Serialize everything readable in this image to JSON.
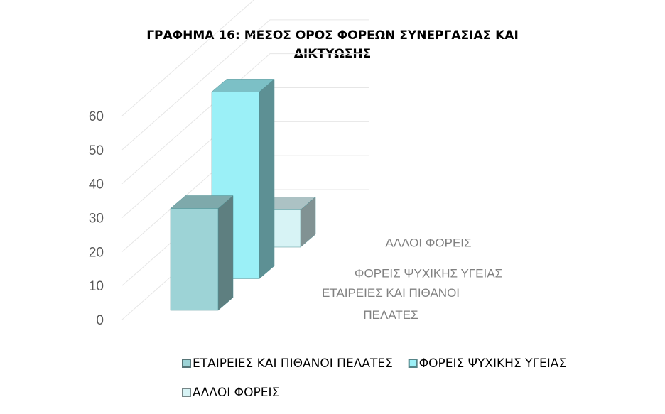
{
  "chart_data": {
    "type": "bar3d",
    "title": "ΓΡΑΦΗΜΑ 16: ΜΕΣΟΣ ΟΡΟΣ ΦΟΡΕΩΝ ΣΥΝΕΡΓΑΣΙΑΣ ΚΑΙ ΔΙΚΤΥΩΣΗΣ",
    "series": [
      {
        "name": "ΕΤΑΙΡΕΙΕΣ ΚΑΙ ΠΙΘΑΝΟΙ ΠΕΛΑΤΕΣ",
        "color": "#9dd3d6",
        "values": [
          30
        ]
      },
      {
        "name": "ΦΟΡΕΙΣ ΨΥΧΙΚΗΣ ΥΓΕΙΑΣ",
        "color": "#9bf0f7",
        "values": [
          55
        ]
      },
      {
        "name": "ΑΛΛΟΙ ΦΟΡΕΙΣ",
        "color": "#d7f3f5",
        "values": [
          11
        ]
      }
    ],
    "ylim": [
      0,
      60
    ],
    "yticks": [
      0,
      10,
      20,
      30,
      40,
      50,
      60
    ],
    "grid": true,
    "legend": "bottom"
  }
}
